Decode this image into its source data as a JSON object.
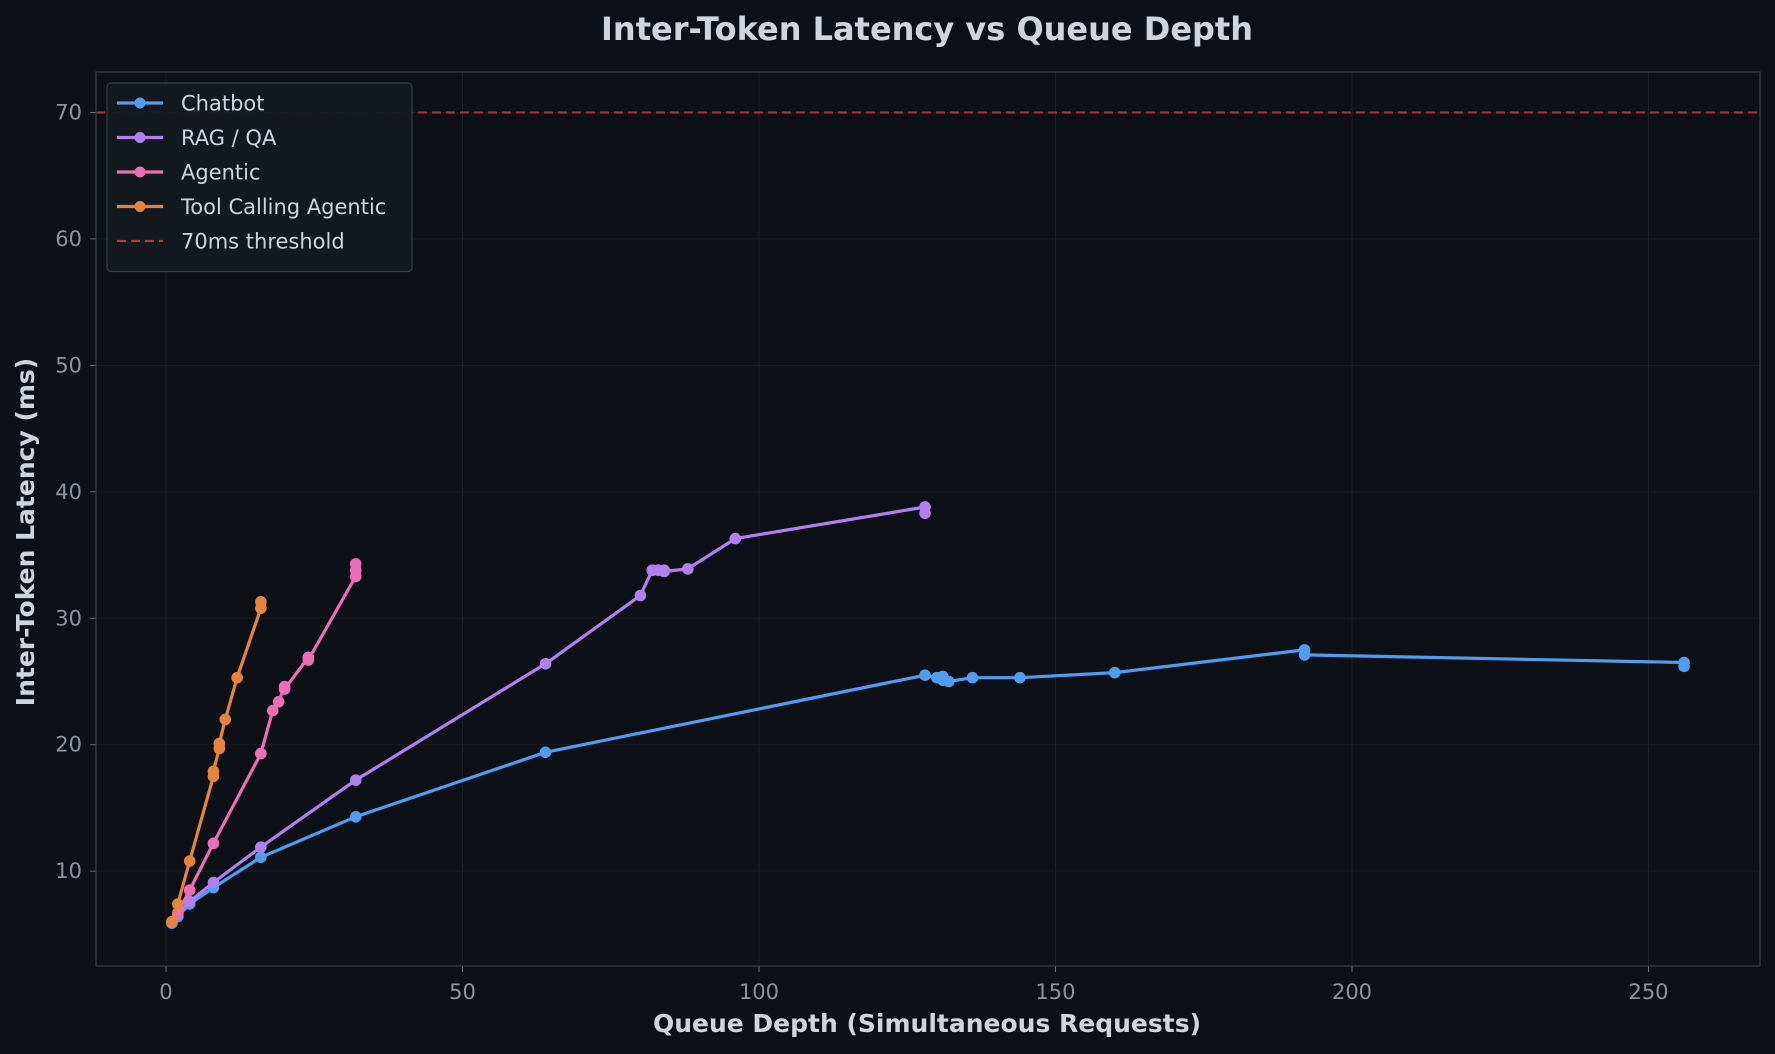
{
  "chart_data": {
    "type": "line",
    "title": "Inter-Token Latency vs Queue Depth",
    "xlabel": "Queue Depth (Simultaneous Requests)",
    "ylabel": "Inter-Token Latency (ms)",
    "xlim": [
      -11.8,
      268.8
    ],
    "ylim": [
      2.5,
      73.2
    ],
    "xticks": [
      0,
      50,
      100,
      150,
      200,
      250
    ],
    "yticks": [
      10,
      20,
      30,
      40,
      50,
      60,
      70
    ],
    "grid": true,
    "legend_position": "top-left",
    "series": [
      {
        "name": "Chatbot",
        "color": "#4f9cf0",
        "x": [
          1,
          2,
          4,
          8,
          16,
          32,
          64,
          128,
          130,
          131,
          131,
          132,
          136,
          144,
          160,
          192,
          192,
          256,
          256
        ],
        "y": [
          5.9,
          6.4,
          7.4,
          8.7,
          11.1,
          14.3,
          19.4,
          25.5,
          25.3,
          25.4,
          25.1,
          25.0,
          25.3,
          25.3,
          25.7,
          27.5,
          27.1,
          26.5,
          26.2
        ]
      },
      {
        "name": "RAG / QA",
        "color": "#b07ff0",
        "x": [
          1,
          2,
          4,
          8,
          16,
          32,
          64,
          80,
          82,
          83,
          84,
          84,
          88,
          96,
          128,
          128
        ],
        "y": [
          5.9,
          6.6,
          7.6,
          9.1,
          11.9,
          17.2,
          26.4,
          31.8,
          33.8,
          33.8,
          33.8,
          33.7,
          33.9,
          36.3,
          38.8,
          38.3
        ]
      },
      {
        "name": "Agentic",
        "color": "#ec6fb5",
        "x": [
          1,
          2,
          4,
          8,
          16,
          18,
          19,
          20,
          20,
          24,
          24,
          32,
          32,
          32
        ],
        "y": [
          6.0,
          6.7,
          8.5,
          12.2,
          19.3,
          22.7,
          23.4,
          24.6,
          24.4,
          26.9,
          26.7,
          33.3,
          33.8,
          34.3
        ]
      },
      {
        "name": "Tool Calling Agentic",
        "color": "#e5843c",
        "x": [
          1,
          2,
          4,
          8,
          8,
          9,
          9,
          10,
          12,
          16,
          16
        ],
        "y": [
          6.0,
          7.4,
          10.8,
          17.5,
          17.9,
          19.7,
          20.1,
          22.0,
          25.3,
          30.8,
          31.3
        ]
      }
    ],
    "threshold": {
      "value": 70,
      "label": "70ms threshold",
      "color": "#b23a3a"
    }
  }
}
